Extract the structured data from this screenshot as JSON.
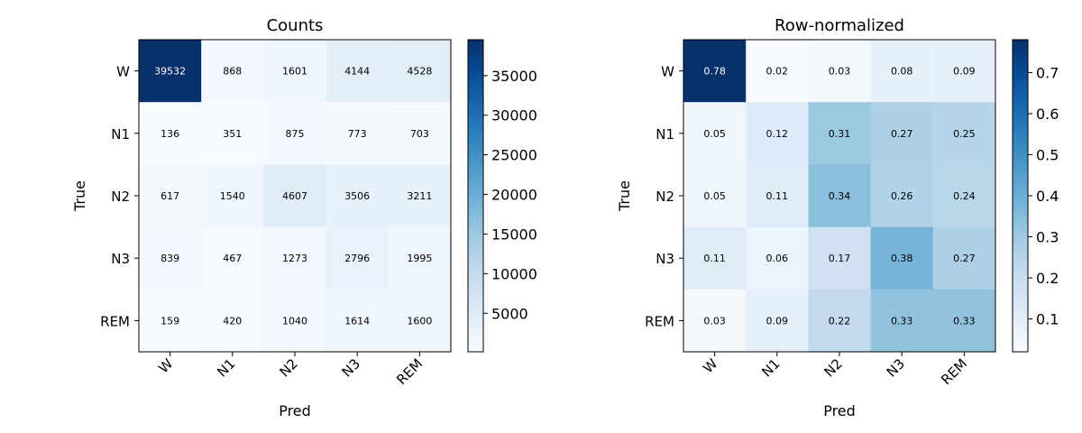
{
  "chart_data": [
    {
      "type": "heatmap",
      "title": "Counts",
      "xlabel": "Pred",
      "ylabel": "True",
      "x_categories": [
        "W",
        "N1",
        "N2",
        "N3",
        "REM"
      ],
      "y_categories": [
        "W",
        "N1",
        "N2",
        "N3",
        "REM"
      ],
      "values": [
        [
          39532,
          868,
          1601,
          4144,
          4528
        ],
        [
          136,
          351,
          875,
          773,
          703
        ],
        [
          617,
          1540,
          4607,
          3506,
          3211
        ],
        [
          839,
          467,
          1273,
          2796,
          1995
        ],
        [
          159,
          420,
          1040,
          1614,
          1600
        ]
      ],
      "cell_labels": [
        [
          "39532",
          "868",
          "1601",
          "4144",
          "4528"
        ],
        [
          "136",
          "351",
          "875",
          "773",
          "703"
        ],
        [
          "617",
          "1540",
          "4607",
          "3506",
          "3211"
        ],
        [
          "839",
          "467",
          "1273",
          "2796",
          "1995"
        ],
        [
          "159",
          "420",
          "1040",
          "1614",
          "1600"
        ]
      ],
      "colormap": "Blues",
      "vmin": 136,
      "vmax": 39532,
      "colorbar": {
        "ticks": [
          5000,
          10000,
          15000,
          20000,
          25000,
          30000,
          35000
        ],
        "tick_labels": [
          "5000",
          "10000",
          "15000",
          "20000",
          "25000",
          "30000",
          "35000"
        ]
      }
    },
    {
      "type": "heatmap",
      "title": "Row-normalized",
      "xlabel": "Pred",
      "ylabel": "True",
      "x_categories": [
        "W",
        "N1",
        "N2",
        "N3",
        "REM"
      ],
      "y_categories": [
        "W",
        "N1",
        "N2",
        "N3",
        "REM"
      ],
      "values": [
        [
          0.78,
          0.02,
          0.03,
          0.08,
          0.09
        ],
        [
          0.05,
          0.12,
          0.31,
          0.27,
          0.25
        ],
        [
          0.05,
          0.11,
          0.34,
          0.26,
          0.24
        ],
        [
          0.11,
          0.06,
          0.17,
          0.38,
          0.27
        ],
        [
          0.03,
          0.09,
          0.22,
          0.33,
          0.33
        ]
      ],
      "cell_labels": [
        [
          "0.78",
          "0.02",
          "0.03",
          "0.08",
          "0.09"
        ],
        [
          "0.05",
          "0.12",
          "0.31",
          "0.27",
          "0.25"
        ],
        [
          "0.05",
          "0.11",
          "0.34",
          "0.26",
          "0.24"
        ],
        [
          "0.11",
          "0.06",
          "0.17",
          "0.38",
          "0.27"
        ],
        [
          "0.03",
          "0.09",
          "0.22",
          "0.33",
          "0.33"
        ]
      ],
      "colormap": "Blues",
      "vmin": 0.02,
      "vmax": 0.78,
      "colorbar": {
        "ticks": [
          0.1,
          0.2,
          0.3,
          0.4,
          0.5,
          0.6,
          0.7
        ],
        "tick_labels": [
          "0.1",
          "0.2",
          "0.3",
          "0.4",
          "0.5",
          "0.6",
          "0.7"
        ]
      }
    }
  ]
}
